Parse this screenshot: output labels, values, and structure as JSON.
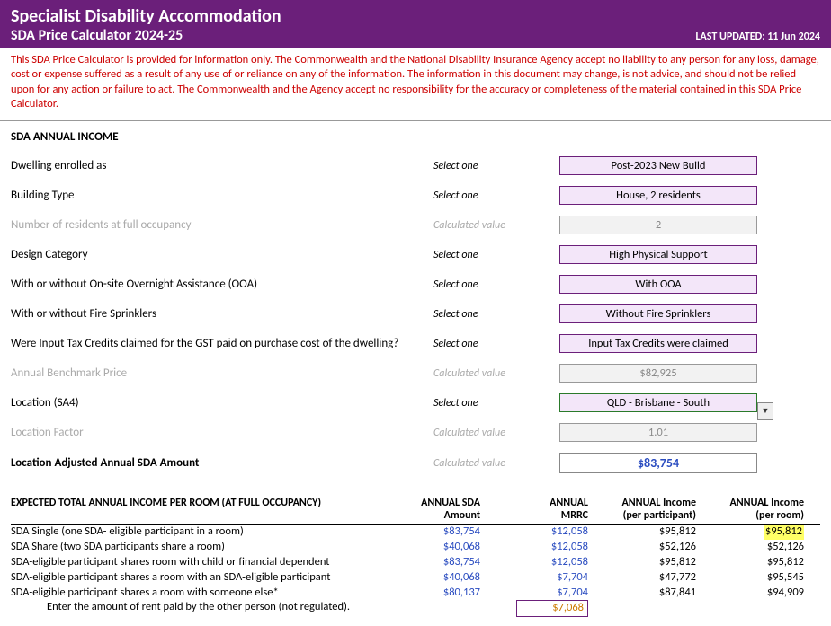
{
  "header": {
    "title": "Specialist Disability Accommodation",
    "subtitle": "SDA Price Calculator 2024-25",
    "updated_label": "LAST UPDATED:",
    "updated_date": "11 Jun 2024"
  },
  "disclaimer": "This SDA Price Calculator is provided for information only.  The Commonwealth and the National Disability Insurance Agency accept no liability to any person for any loss, damage, cost or expense suffered as a result of any use of or reliance on any of the information.  The information in this document may change, is not advice, and should not be relied upon for any action or failure to act. The Commonwealth and the Agency accept no responsibility for the accuracy or completeness of the material contained in this SDA Price Calculator.",
  "section_title": "SDA ANNUAL INCOME",
  "hints": {
    "select": "Select one",
    "calc": "Calculated value"
  },
  "fields": {
    "dwelling": {
      "label": "Dwelling enrolled as",
      "value": "Post-2023 New Build"
    },
    "building": {
      "label": "Building Type",
      "value": "House, 2 residents"
    },
    "residents": {
      "label": "Number of residents at full occupancy",
      "value": "2"
    },
    "design": {
      "label": "Design Category",
      "value": "High Physical Support"
    },
    "ooa": {
      "label": "With or without On-site Overnight Assistance (OOA)",
      "value": "With OOA"
    },
    "fire": {
      "label": "With or without Fire Sprinklers",
      "value": "Without Fire Sprinklers"
    },
    "gst": {
      "label": "Were Input Tax Credits claimed for the GST paid on purchase cost of the dwelling?",
      "value": "Input Tax Credits were claimed"
    },
    "benchmark": {
      "label": "Annual Benchmark Price",
      "value": "$82,925"
    },
    "location": {
      "label": "Location (SA4)",
      "value": "QLD - Brisbane - South"
    },
    "locfactor": {
      "label": "Location Factor",
      "value": "1.01"
    },
    "adjusted": {
      "label": "Location Adjusted Annual SDA Amount",
      "value": "$83,754"
    }
  },
  "table": {
    "title": "EXPECTED TOTAL ANNUAL INCOME PER ROOM (AT FULL OCCUPANCY)",
    "headers": {
      "c2a": "ANNUAL SDA",
      "c2b": "Amount",
      "c3a": "ANNUAL",
      "c3b": "MRRC",
      "c4a": "ANNUAL Income",
      "c4b": "(per participant)",
      "c5a": "ANNUAL Income",
      "c5b": "(per room)"
    },
    "rows": [
      {
        "label": "SDA Single (one SDA- eligible participant in a room)",
        "sda": "$83,754",
        "mrrc": "$12,058",
        "perpart": "$95,812",
        "perroom": "$95,812",
        "hl": true
      },
      {
        "label": "SDA Share (two SDA participants share a room)",
        "sda": "$40,068",
        "mrrc": "$12,058",
        "perpart": "$52,126",
        "perroom": "$52,126"
      },
      {
        "label": "SDA-eligible participant shares room with child or financial dependent",
        "sda": "$83,754",
        "mrrc": "$12,058",
        "perpart": "$95,812",
        "perroom": "$95,812"
      },
      {
        "label": "SDA-eligible participant shares a room with an SDA-eligible participant",
        "sda": "$40,068",
        "mrrc": "$7,704",
        "perpart": "$47,772",
        "perroom": "$95,545"
      },
      {
        "label": "SDA-eligible participant shares a room with someone else*",
        "sda": "$80,137",
        "mrrc": "$7,704",
        "perpart": "$87,841",
        "perroom": "$94,909"
      }
    ],
    "rent_label": "Enter the amount of rent paid by the other person (not regulated).",
    "rent_value": "$7,068"
  }
}
